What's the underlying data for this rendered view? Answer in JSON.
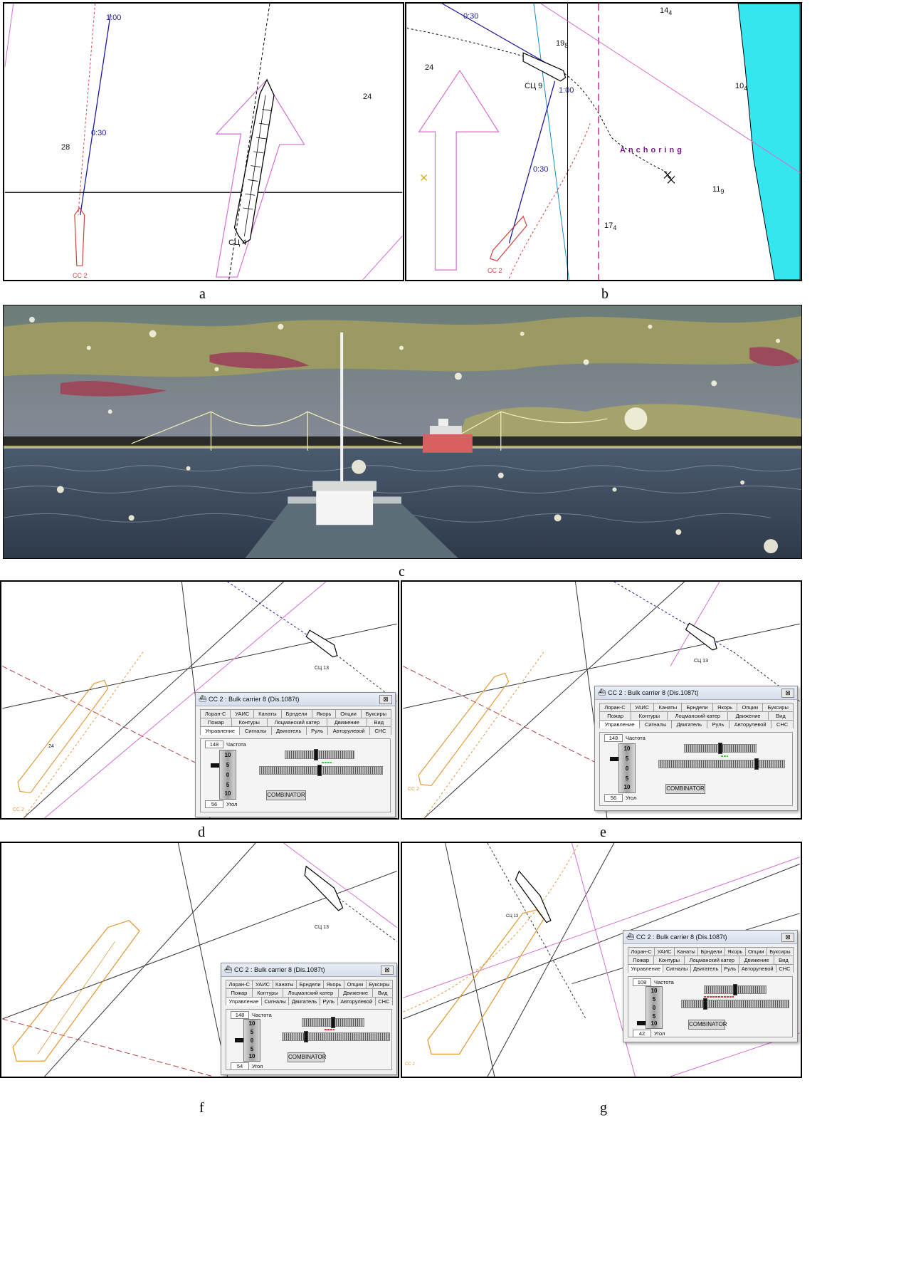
{
  "captions": {
    "a": "a",
    "b": "b",
    "c": "c",
    "d": "d",
    "e": "e",
    "f": "f",
    "g": "g"
  },
  "panel_a": {
    "labels": {
      "t100": "1:00",
      "t030": "0:30",
      "depth28": "28",
      "depth24": "24",
      "own": "СЦ 4",
      "other": "CC 2"
    }
  },
  "panel_b": {
    "labels": {
      "t030": "0:30",
      "t100": "1:00",
      "t030b": "0:30",
      "d14": "14",
      "d14s": "4",
      "d19": "19",
      "d19s": "8",
      "d24": "24",
      "d10": "10",
      "d10s": "4",
      "d11": "11",
      "d11s": "9",
      "d17": "17",
      "d17s": "4",
      "own": "СЦ 9",
      "other": "CC 2",
      "anchoring": "Anchoring"
    }
  },
  "panel_d": {
    "own": "СЦ 13",
    "other": "CC 2",
    "depth": "24"
  },
  "panel_e": {
    "own": "СЦ 13",
    "other": "CC 2"
  },
  "panel_f": {
    "own": "СЦ 13"
  },
  "panel_g": {
    "own": "СЦ 13",
    "other": "CC 2"
  },
  "dialog": {
    "title": "CC 2 : Bulk carrier 8 (Dis.1087t)",
    "close": "⊠",
    "tabs_row1": [
      "Лоран-С",
      "УАИС",
      "Канаты",
      "Брндели",
      "Якорь",
      "Опции",
      "Буксиры"
    ],
    "tabs_row2": [
      "Пожар",
      "Контуры",
      "Лоцманский катер",
      "Движение",
      "Вид"
    ],
    "tabs_row3": [
      "Управление",
      "Сигналы",
      "Двигатель",
      "Руль",
      "Авторулевой",
      "СНС"
    ],
    "freq_label": "Частота",
    "angle_label": "Угол",
    "scale": [
      "10",
      "5",
      "0",
      "5",
      "10"
    ],
    "button": "COMBINATOR"
  },
  "dialogs": {
    "d": {
      "freq": "148",
      "angle": "56",
      "top_knob": 0.45,
      "bottom_knob": 0.49,
      "marker_color": "#3bd13b"
    },
    "e": {
      "freq": "148",
      "angle": "56",
      "top_knob": 0.5,
      "bottom_knob": 0.78,
      "marker_color": "#3bd13b"
    },
    "f": {
      "freq": "148",
      "angle": "54",
      "top_knob": 0.5,
      "bottom_knob": 0.22,
      "marker_color": "#e03030"
    },
    "g": {
      "freq": "108",
      "angle": "42",
      "top_knob": 0.5,
      "bottom_knob": 0.22,
      "marker_color": "#e03030"
    }
  },
  "colors": {
    "water": "#33e6f0",
    "own_ship": "#000000",
    "target": "#d04040",
    "track_blue": "#1a1a9a",
    "orange": "#e39a3a",
    "magenta": "#d36fd3"
  }
}
